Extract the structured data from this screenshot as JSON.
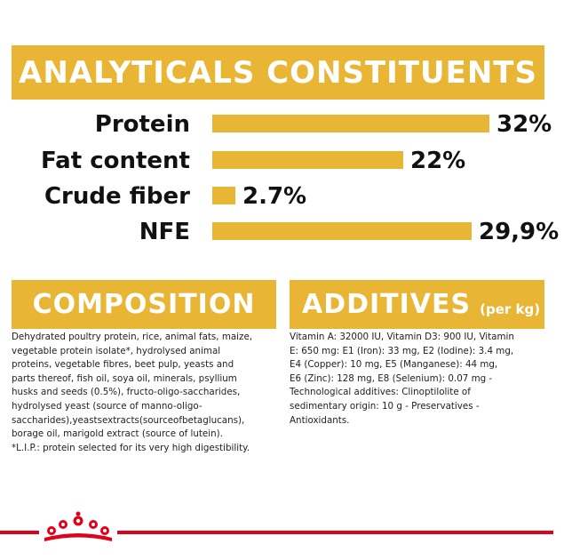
{
  "analytical": {
    "title": "ANALYTICALS CONSTITUENTS",
    "rows": [
      {
        "label": "Protein",
        "value_text": "32%",
        "value": 32
      },
      {
        "label": "Fat content",
        "value_text": "22%",
        "value": 22
      },
      {
        "label": "Crude fiber",
        "value_text": "2.7%",
        "value": 2.7
      },
      {
        "label": "NFE",
        "value_text": "29,9%",
        "value": 29.9
      }
    ]
  },
  "composition": {
    "title": "COMPOSITION",
    "lines": [
      "Dehydrated poultry protein, rice, animal fats, maize,",
      "vegetable protein isolate*, hydrolysed animal",
      "proteins, vegetable fibres, beet pulp, yeasts and",
      "parts thereof, fish oil, soya oil, minerals, psyllium",
      "husks and seeds (0.5%), fructo-oligo-saccharides,",
      "hydrolysed yeast (source of manno-oligo-",
      "saccharides),yeastsextracts(sourceofbetaglucans),",
      "borage oil, marigold extract (source of lutein).",
      "*L.I.P.: protein selected for its very high digestibility."
    ]
  },
  "additives": {
    "title": "ADDITIVES",
    "subtitle": "(per kg)",
    "lines": [
      "Vitamin A: 32000 IU, Vitamin D3: 900 IU, Vitamin",
      "E: 650 mg: E1 (Iron): 33 mg, E2 (Iodine): 3.4 mg,",
      "E4 (Copper): 10 mg, E5 (Manganese): 44 mg,",
      "E6 (Zinc): 128 mg, E8 (Selenium): 0.07 mg -",
      "Technological additives: Clinoptilolite of",
      "sedimentary origin: 10 g - Preservatives -",
      "Antioxidants."
    ]
  },
  "colors": {
    "accent": "#e8b535",
    "brand_red": "#e1001a"
  },
  "footer": {
    "logo": "royal-canin-crown-icon"
  }
}
